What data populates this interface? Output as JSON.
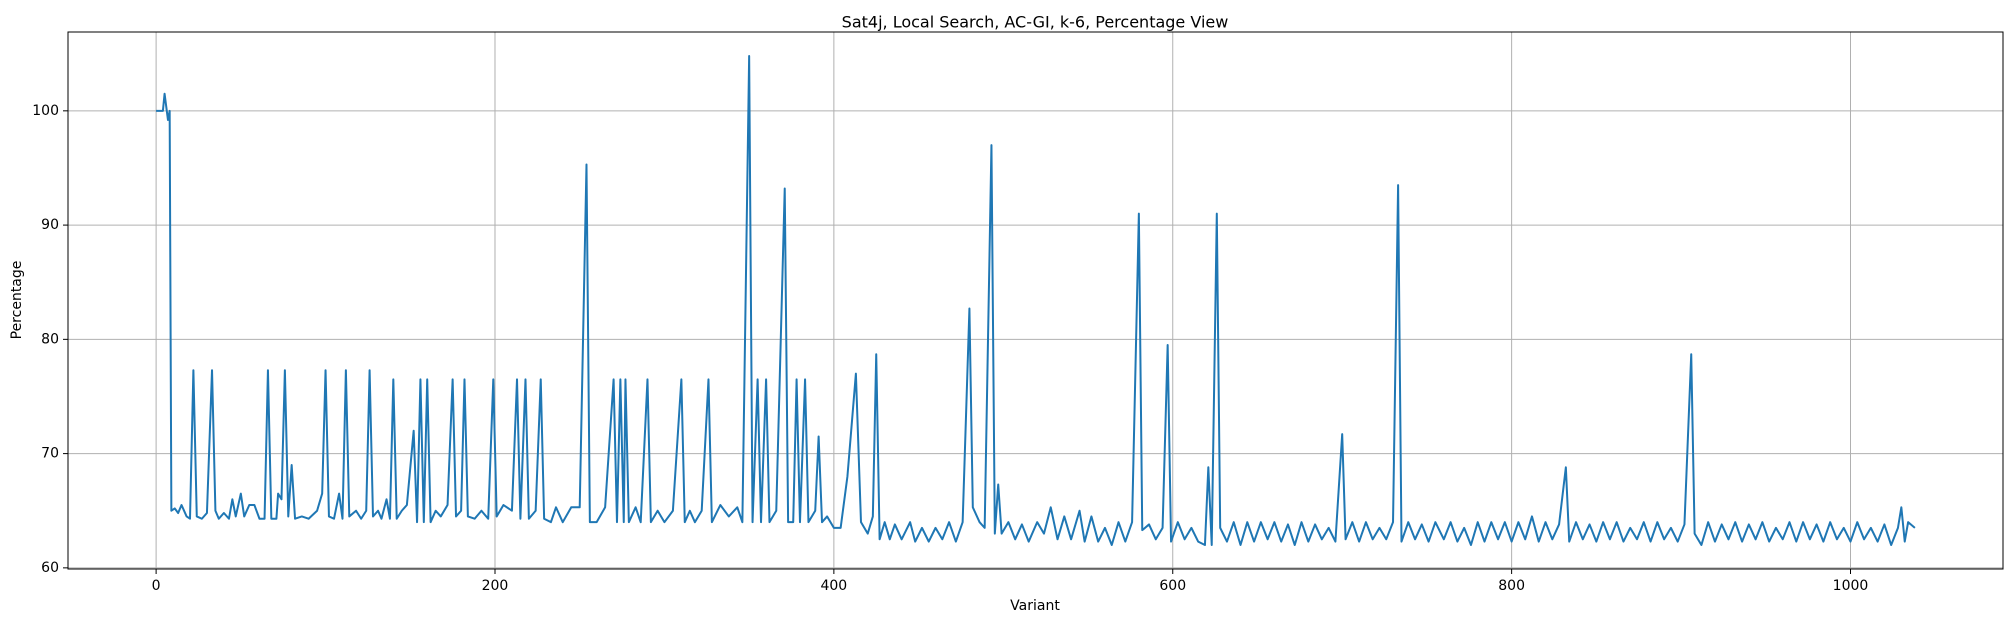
{
  "chart_data": {
    "type": "line",
    "title": "Sat4j, Local Search, AC-GI, k-6, Percentage View",
    "x_label": "Variant",
    "y_label": "Percentage",
    "xlim": [
      -52,
      1090
    ],
    "ylim": [
      59.9,
      106.9
    ],
    "xticks": [
      0,
      200,
      400,
      600,
      800,
      1000
    ],
    "yticks": [
      60,
      70,
      80,
      90,
      100
    ],
    "grid": true,
    "series": [
      {
        "color": "#1f77b4",
        "x": [
          0,
          4,
          5,
          7,
          8,
          9,
          11,
          13,
          15,
          18,
          20,
          22,
          24,
          27,
          30,
          33,
          35,
          37,
          40,
          43,
          45,
          47,
          50,
          52,
          55,
          58,
          61,
          64,
          66,
          68,
          71,
          72,
          74,
          76,
          78,
          80,
          82,
          86,
          90,
          95,
          98,
          100,
          102,
          105,
          108,
          110,
          112,
          114,
          118,
          121,
          124,
          126,
          128,
          131,
          133,
          136,
          138,
          140,
          142,
          145,
          148,
          152,
          154,
          156,
          158,
          160,
          162,
          165,
          168,
          172,
          175,
          177,
          180,
          182,
          184,
          188,
          192,
          196,
          199,
          201,
          205,
          210,
          213,
          215,
          218,
          220,
          224,
          227,
          229,
          233,
          236,
          240,
          245,
          250,
          254,
          256,
          260,
          265,
          270,
          272,
          274,
          276,
          277,
          279,
          283,
          286,
          290,
          292,
          296,
          300,
          305,
          310,
          312,
          315,
          318,
          322,
          326,
          328,
          333,
          338,
          343,
          346,
          350,
          352,
          355,
          357,
          360,
          362,
          366,
          371,
          373,
          376,
          378,
          380,
          383,
          385,
          389,
          391,
          393,
          396,
          400,
          404,
          408,
          413,
          416,
          420,
          423,
          425,
          427,
          430,
          433,
          436,
          440,
          445,
          448,
          452,
          456,
          460,
          464,
          468,
          472,
          476,
          480,
          482,
          486,
          489,
          493,
          495,
          497,
          499,
          503,
          507,
          511,
          515,
          520,
          524,
          528,
          532,
          536,
          540,
          545,
          548,
          552,
          556,
          560,
          564,
          568,
          572,
          576,
          580,
          582,
          586,
          590,
          594,
          597,
          599,
          603,
          607,
          611,
          615,
          619,
          621,
          623,
          626,
          628,
          632,
          636,
          640,
          644,
          648,
          652,
          656,
          660,
          664,
          668,
          672,
          676,
          680,
          684,
          688,
          692,
          696,
          700,
          702,
          706,
          710,
          714,
          718,
          722,
          726,
          730,
          733,
          735,
          739,
          743,
          747,
          751,
          755,
          760,
          764,
          768,
          772,
          776,
          780,
          784,
          788,
          792,
          796,
          800,
          804,
          808,
          812,
          816,
          820,
          824,
          828,
          832,
          834,
          838,
          842,
          846,
          850,
          854,
          858,
          862,
          866,
          870,
          874,
          878,
          882,
          886,
          890,
          894,
          898,
          902,
          906,
          908,
          912,
          916,
          920,
          924,
          928,
          932,
          936,
          940,
          944,
          948,
          952,
          956,
          960,
          964,
          968,
          972,
          976,
          980,
          984,
          988,
          992,
          996,
          1000,
          1004,
          1008,
          1012,
          1016,
          1020,
          1024,
          1028,
          1030,
          1032,
          1034,
          1038
        ],
        "values": [
          100,
          100,
          101.5,
          99.2,
          100,
          65,
          65.2,
          64.8,
          65.5,
          64.5,
          64.3,
          77.3,
          64.5,
          64.3,
          64.8,
          77.3,
          65,
          64.3,
          64.8,
          64.3,
          66,
          64.5,
          66.5,
          64.5,
          65.5,
          65.5,
          64.3,
          64.3,
          77.3,
          64.3,
          64.3,
          66.5,
          66,
          77.3,
          64.5,
          69,
          64.3,
          64.5,
          64.3,
          65,
          66.5,
          77.3,
          64.5,
          64.3,
          66.5,
          64.3,
          77.3,
          64.5,
          65,
          64.3,
          65,
          77.3,
          64.5,
          65,
          64.3,
          66,
          64.3,
          76.5,
          64.3,
          65,
          65.5,
          72,
          64,
          76.5,
          64,
          76.5,
          64,
          65,
          64.5,
          65.5,
          76.5,
          64.5,
          65,
          76.5,
          64.5,
          64.3,
          65,
          64.3,
          76.5,
          64.5,
          65.5,
          65,
          76.5,
          64.3,
          76.5,
          64.3,
          65,
          76.5,
          64.3,
          64,
          65.3,
          64,
          65.3,
          65.3,
          95.3,
          64,
          64,
          65.3,
          76.5,
          64,
          76.5,
          64,
          76.5,
          64,
          65.3,
          64,
          76.5,
          64,
          65,
          64,
          65,
          76.5,
          64,
          65,
          64,
          65,
          76.5,
          64,
          65.5,
          64.5,
          65.3,
          64,
          104.8,
          64,
          76.5,
          64,
          76.5,
          64,
          65,
          93.2,
          64,
          64,
          76.5,
          64,
          76.5,
          64,
          65,
          71.5,
          64,
          64.5,
          63.5,
          63.5,
          68,
          77,
          64,
          63,
          64.5,
          78.7,
          62.5,
          64,
          62.5,
          63.8,
          62.5,
          64,
          62.3,
          63.5,
          62.3,
          63.5,
          62.5,
          64,
          62.3,
          64,
          82.7,
          65.3,
          64,
          63.5,
          97,
          63,
          67.3,
          63,
          64,
          62.5,
          63.8,
          62.3,
          64,
          63,
          65.3,
          62.5,
          64.5,
          62.5,
          65,
          62.3,
          64.5,
          62.3,
          63.5,
          62,
          64,
          62.3,
          64,
          91,
          63.3,
          63.8,
          62.5,
          63.5,
          79.5,
          62.3,
          64,
          62.5,
          63.5,
          62.3,
          62,
          68.8,
          62,
          91,
          63.5,
          62.3,
          64,
          62,
          64,
          62.3,
          64,
          62.5,
          64,
          62.3,
          63.8,
          62,
          64,
          62.3,
          63.8,
          62.5,
          63.5,
          62.3,
          71.7,
          62.5,
          64,
          62.3,
          64,
          62.5,
          63.5,
          62.5,
          64,
          93.5,
          62.3,
          64,
          62.5,
          63.8,
          62.3,
          64,
          62.5,
          64,
          62.3,
          63.5,
          62,
          64,
          62.3,
          64,
          62.5,
          64,
          62.3,
          64,
          62.5,
          64.5,
          62.3,
          64,
          62.5,
          63.8,
          68.8,
          62.3,
          64,
          62.5,
          63.8,
          62.3,
          64,
          62.5,
          64,
          62.3,
          63.5,
          62.5,
          64,
          62.3,
          64,
          62.5,
          63.5,
          62.3,
          63.8,
          78.7,
          63,
          62,
          64,
          62.3,
          63.8,
          62.5,
          64,
          62.3,
          63.8,
          62.5,
          64,
          62.3,
          63.5,
          62.5,
          64,
          62.3,
          64,
          62.5,
          63.8,
          62.3,
          64,
          62.5,
          63.5,
          62.3,
          64,
          62.5,
          63.5,
          62.3,
          63.8,
          62,
          63.5,
          65.3,
          62.3,
          64,
          63.5
        ]
      }
    ]
  }
}
